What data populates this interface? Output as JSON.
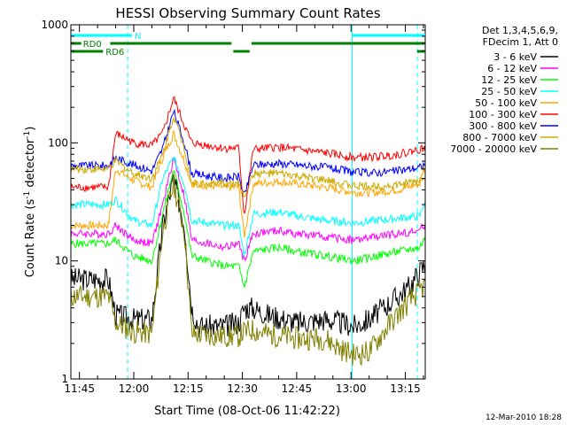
{
  "chart_data": {
    "type": "line",
    "title": "HESSI Observing Summary Count Rates",
    "xlabel": "Start Time (08-Oct-06 11:42:22)",
    "ylabel_main": "Count Rate (s",
    "ylabel_sup1": "-1",
    "ylabel_mid": " detector",
    "ylabel_sup2": "-1",
    "ylabel_end": ")",
    "ylog": true,
    "ylim": [
      1,
      1000
    ],
    "xlim_minutes": [
      -2.37,
      95.5
    ],
    "xtick_minutes": [
      0,
      15,
      30,
      45,
      60,
      75,
      90
    ],
    "xtick_labels": [
      "11:45",
      "12:00",
      "12:15",
      "12:30",
      "12:45",
      "13:00",
      "13:15"
    ],
    "ytick_values": [
      1,
      10,
      100,
      1000
    ],
    "ytick_labels": [
      "1",
      "10",
      "100",
      "1000"
    ],
    "legend_header": [
      "Det 1,3,4,5,6,9,",
      "FDecim 1, Att 0"
    ],
    "legend_position": "right",
    "series": [
      {
        "name": "3 - 6 keV",
        "color": "#000000",
        "points": [
          [
            -2.3,
            7
          ],
          [
            8,
            7
          ],
          [
            10,
            3.5
          ],
          [
            15,
            3.2
          ],
          [
            20,
            3.2
          ],
          [
            23,
            20
          ],
          [
            26,
            50
          ],
          [
            29,
            20
          ],
          [
            31,
            4
          ],
          [
            33,
            2.8
          ],
          [
            40,
            2.8
          ],
          [
            44,
            3
          ],
          [
            45.5,
            4
          ],
          [
            48,
            4
          ],
          [
            52,
            3.5
          ],
          [
            60,
            3
          ],
          [
            68,
            3.2
          ],
          [
            72,
            3
          ],
          [
            76,
            2.8
          ],
          [
            80,
            3.2
          ],
          [
            86,
            4.5
          ],
          [
            91,
            6
          ],
          [
            95,
            9
          ]
        ]
      },
      {
        "name": "6 - 12 keV",
        "color": "#ff00ff",
        "points": [
          [
            -2.3,
            17
          ],
          [
            8,
            17
          ],
          [
            10,
            20
          ],
          [
            15,
            15
          ],
          [
            20,
            14
          ],
          [
            23,
            30
          ],
          [
            26,
            75
          ],
          [
            29,
            35
          ],
          [
            31,
            15
          ],
          [
            40,
            13
          ],
          [
            44,
            14
          ],
          [
            45.5,
            10
          ],
          [
            48,
            17
          ],
          [
            55,
            18
          ],
          [
            60,
            17
          ],
          [
            68,
            16
          ],
          [
            76,
            15
          ],
          [
            82,
            16
          ],
          [
            88,
            17
          ],
          [
            94,
            18
          ],
          [
            95,
            20
          ]
        ]
      },
      {
        "name": "12 - 25 keV",
        "color": "#00ff00",
        "points": [
          [
            -2.3,
            14
          ],
          [
            8,
            14
          ],
          [
            10,
            15
          ],
          [
            15,
            11
          ],
          [
            20,
            10
          ],
          [
            23,
            25
          ],
          [
            26,
            60
          ],
          [
            29,
            25
          ],
          [
            31,
            11
          ],
          [
            40,
            9
          ],
          [
            44,
            9
          ],
          [
            45.5,
            6
          ],
          [
            48,
            12
          ],
          [
            55,
            13
          ],
          [
            60,
            12
          ],
          [
            68,
            11
          ],
          [
            76,
            10
          ],
          [
            82,
            11
          ],
          [
            88,
            12
          ],
          [
            94,
            13
          ],
          [
            95,
            15
          ]
        ]
      },
      {
        "name": "25 - 50 keV",
        "color": "#00ffff",
        "points": [
          [
            -2.3,
            30
          ],
          [
            8,
            30
          ],
          [
            10,
            33
          ],
          [
            15,
            22
          ],
          [
            20,
            20
          ],
          [
            23,
            50
          ],
          [
            26,
            75
          ],
          [
            29,
            45
          ],
          [
            31,
            22
          ],
          [
            40,
            20
          ],
          [
            44,
            20
          ],
          [
            45.5,
            11
          ],
          [
            48,
            25
          ],
          [
            55,
            26
          ],
          [
            60,
            24
          ],
          [
            68,
            22
          ],
          [
            76,
            21
          ],
          [
            82,
            22
          ],
          [
            88,
            23
          ],
          [
            94,
            24
          ],
          [
            95,
            30
          ]
        ]
      },
      {
        "name": "50 - 100 keV",
        "color": "#ffa500",
        "points": [
          [
            -2.3,
            20
          ],
          [
            8,
            20
          ],
          [
            10,
            60
          ],
          [
            15,
            48
          ],
          [
            20,
            42
          ],
          [
            23,
            75
          ],
          [
            26,
            120
          ],
          [
            29,
            70
          ],
          [
            31,
            45
          ],
          [
            40,
            42
          ],
          [
            44,
            42
          ],
          [
            45.5,
            16
          ],
          [
            48,
            45
          ],
          [
            55,
            47
          ],
          [
            60,
            45
          ],
          [
            68,
            42
          ],
          [
            76,
            38
          ],
          [
            82,
            38
          ],
          [
            88,
            40
          ],
          [
            94,
            45
          ],
          [
            95,
            60
          ]
        ]
      },
      {
        "name": "100 - 300 keV",
        "color": "#ff0000",
        "points": [
          [
            -2.3,
            42
          ],
          [
            8,
            42
          ],
          [
            10,
            120
          ],
          [
            15,
            100
          ],
          [
            20,
            95
          ],
          [
            23,
            120
          ],
          [
            26,
            240
          ],
          [
            29,
            140
          ],
          [
            31,
            100
          ],
          [
            40,
            90
          ],
          [
            44,
            90
          ],
          [
            45.5,
            24
          ],
          [
            48,
            88
          ],
          [
            55,
            92
          ],
          [
            60,
            88
          ],
          [
            68,
            82
          ],
          [
            76,
            75
          ],
          [
            82,
            76
          ],
          [
            88,
            80
          ],
          [
            94,
            88
          ],
          [
            95,
            90
          ]
        ]
      },
      {
        "name": "300 - 800 keV",
        "color": "#0000ff",
        "points": [
          [
            -2.3,
            64
          ],
          [
            8,
            64
          ],
          [
            10,
            75
          ],
          [
            15,
            65
          ],
          [
            20,
            58
          ],
          [
            23,
            90
          ],
          [
            26,
            185
          ],
          [
            29,
            100
          ],
          [
            31,
            55
          ],
          [
            40,
            50
          ],
          [
            44,
            52
          ],
          [
            45.5,
            35
          ],
          [
            48,
            65
          ],
          [
            55,
            67
          ],
          [
            60,
            65
          ],
          [
            68,
            62
          ],
          [
            76,
            56
          ],
          [
            82,
            56
          ],
          [
            88,
            58
          ],
          [
            94,
            62
          ],
          [
            95,
            65
          ]
        ]
      },
      {
        "name": "800 - 7000 keV",
        "color": "#ccaa00",
        "points": [
          [
            -2.3,
            60
          ],
          [
            8,
            60
          ],
          [
            10,
            70
          ],
          [
            15,
            55
          ],
          [
            20,
            50
          ],
          [
            23,
            80
          ],
          [
            26,
            170
          ],
          [
            29,
            90
          ],
          [
            31,
            45
          ],
          [
            40,
            45
          ],
          [
            44,
            45
          ],
          [
            45.5,
            35
          ],
          [
            48,
            55
          ],
          [
            55,
            55
          ],
          [
            60,
            52
          ],
          [
            68,
            48
          ],
          [
            76,
            43
          ],
          [
            82,
            43
          ],
          [
            88,
            44
          ],
          [
            94,
            48
          ],
          [
            95,
            52
          ]
        ]
      },
      {
        "name": "7000 - 20000 keV",
        "color": "#808000",
        "points": [
          [
            -2.3,
            5
          ],
          [
            8,
            5
          ],
          [
            10,
            3
          ],
          [
            15,
            2.5
          ],
          [
            20,
            2.4
          ],
          [
            23,
            18
          ],
          [
            26,
            45
          ],
          [
            29,
            18
          ],
          [
            31,
            2.4
          ],
          [
            40,
            2.3
          ],
          [
            44,
            2.3
          ],
          [
            45.5,
            2.5
          ],
          [
            48,
            2.6
          ],
          [
            52,
            2.4
          ],
          [
            60,
            2.2
          ],
          [
            68,
            2.2
          ],
          [
            72,
            1.8
          ],
          [
            76,
            1.6
          ],
          [
            80,
            1.7
          ],
          [
            86,
            3
          ],
          [
            91,
            4.5
          ],
          [
            95,
            6
          ]
        ]
      }
    ],
    "vertical_lines_solid": [
      75.3
    ],
    "vertical_lines_dashed": [
      13.3,
      93.3
    ],
    "bars": [
      {
        "label": "N",
        "color": "#00ffff",
        "y_row": 1,
        "segments": [
          [
            -2.3,
            14.5
          ],
          [
            75.3,
            95.5
          ]
        ]
      },
      {
        "label": "RD0",
        "color": "#008000",
        "y_row": 2,
        "segments": [
          [
            -2.3,
            0.5
          ],
          [
            8.5,
            42
          ],
          [
            47.5,
            95.5
          ]
        ]
      },
      {
        "label": "RD6",
        "color": "#008000",
        "y_row": 3,
        "segments": [
          [
            -2.3,
            6.5
          ],
          [
            42.5,
            47.0
          ],
          [
            93.3,
            95.5
          ]
        ]
      }
    ]
  },
  "footer_text": "12-Mar-2010 18:28"
}
